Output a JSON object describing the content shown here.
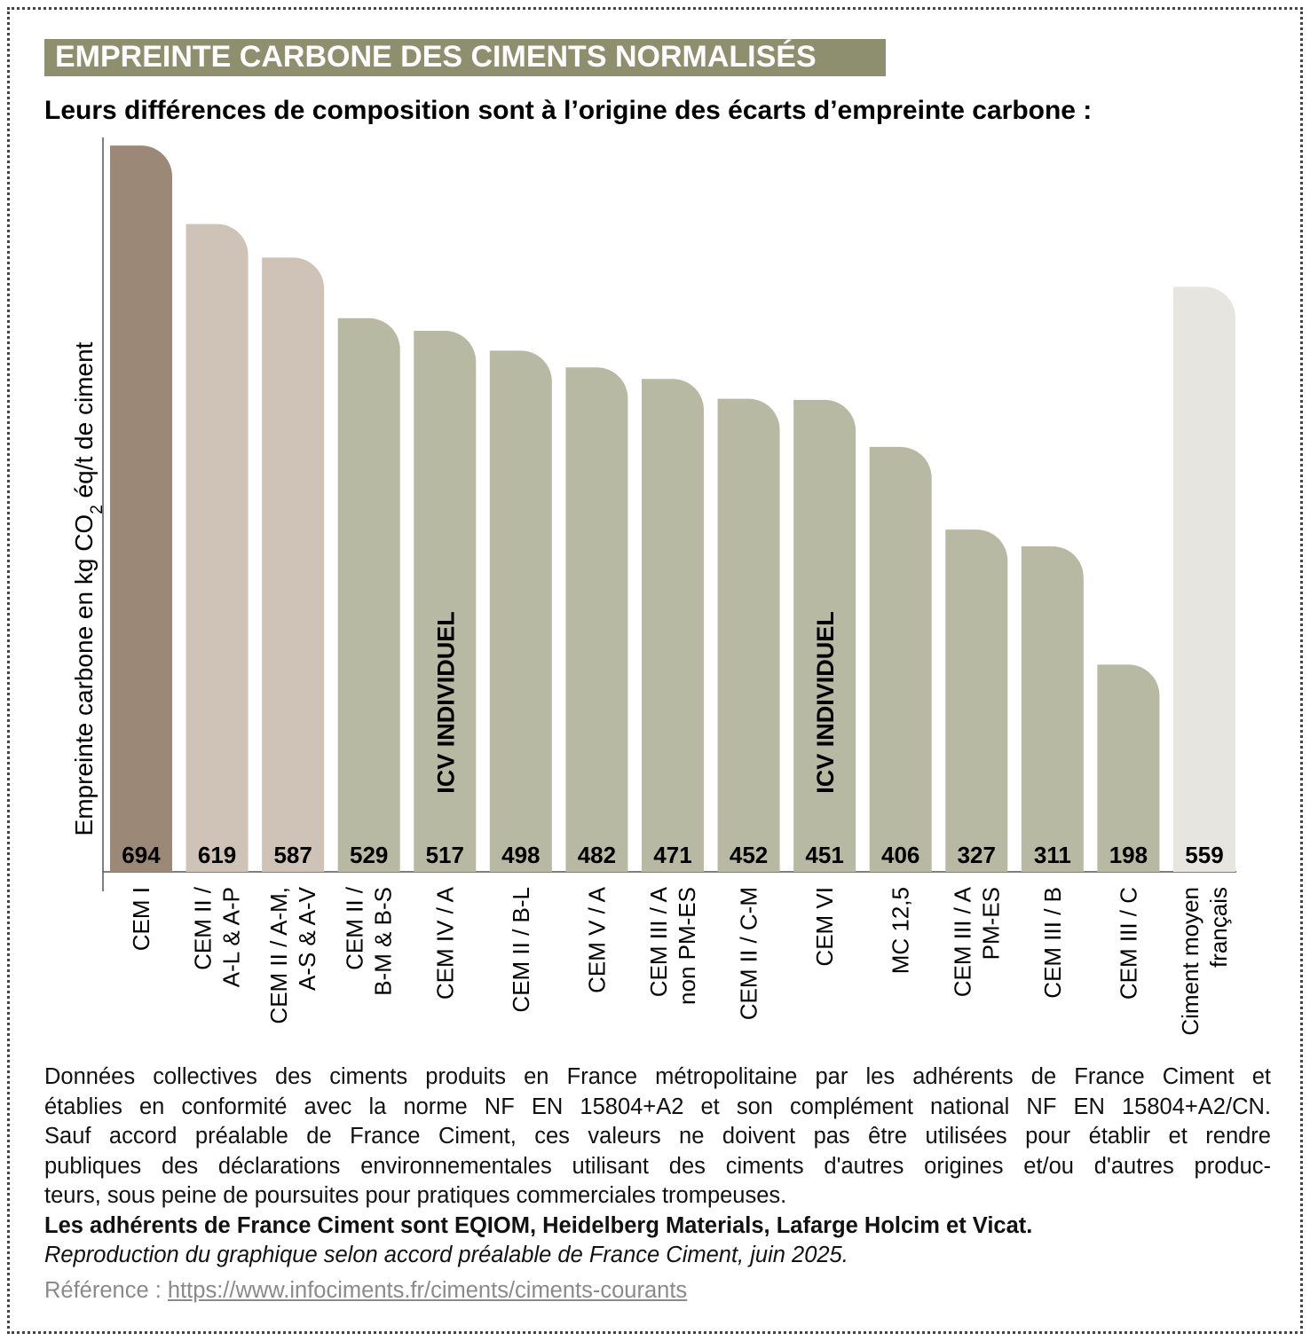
{
  "chart_data": {
    "type": "bar",
    "title": "EMPREINTE CARBONE DES CIMENTS NORMALISÉS",
    "subtitle": "Leurs différences de composition sont à l’origine des écarts d’empreinte carbone :",
    "ylabel": [
      "Empreinte carbone en kg CO",
      "2",
      " éq/t de ciment"
    ],
    "categories": [
      [
        "CEM I"
      ],
      [
        "CEM II /",
        "A-L & A-P"
      ],
      [
        "CEM II / A-M,",
        "A-S & A-V"
      ],
      [
        "CEM II /",
        "B-M & B-S"
      ],
      [
        "CEM IV / A"
      ],
      [
        "CEM II / B-L"
      ],
      [
        "CEM V / A"
      ],
      [
        "CEM III / A",
        "non PM-ES"
      ],
      [
        "CEM II / C-M"
      ],
      [
        "CEM VI"
      ],
      [
        "MC 12,5"
      ],
      [
        "CEM III / A",
        "PM-ES"
      ],
      [
        "CEM III / B"
      ],
      [
        "CEM III / C"
      ],
      [
        "Ciment moyen",
        "français"
      ]
    ],
    "values": [
      694,
      619,
      587,
      529,
      517,
      498,
      482,
      471,
      452,
      451,
      406,
      327,
      311,
      198,
      559
    ],
    "colors": [
      "#9b8877",
      "#cfc3b8",
      "#cfc3b8",
      "#b8b9a3",
      "#b8b9a3",
      "#b8b9a3",
      "#b8b9a3",
      "#b8b9a3",
      "#b8b9a3",
      "#b8b9a3",
      "#b8b9a3",
      "#b8b9a3",
      "#b8b9a3",
      "#b8b9a3",
      "#e6e5e0"
    ],
    "bar_notes": [
      null,
      null,
      null,
      null,
      "ICV INDIVIDUEL",
      null,
      null,
      null,
      null,
      "ICV INDIVIDUEL",
      null,
      null,
      null,
      null,
      null
    ],
    "ylim": [
      0,
      700
    ]
  },
  "footer": {
    "lines": [
      "Données collectives des ciments produits en France métropolitaine par les adhérents de France Ciment et",
      "établies en conformité avec la norme NF EN 15804+A2 et son complément national NF EN 15804+A2/CN.",
      "Sauf accord préalable de France Ciment, ces valeurs ne doivent pas être utilisées pour établir et rendre",
      "publiques des déclarations environnementales utilisant des ciments d'autres origines et/ou d'autres produc-",
      "teurs, sous peine de poursuites pour pratiques commerciales trompeuses."
    ],
    "bold": "Les adhérents de France Ciment sont EQIOM, Heidelberg Materials, Lafarge Holcim et Vicat.",
    "italic": "Reproduction du graphique selon accord préalable de France Ciment, juin 2025.",
    "reference_label": "Référence : ",
    "reference_link": "https://www.infociments.fr/ciments/ciments-courants"
  }
}
